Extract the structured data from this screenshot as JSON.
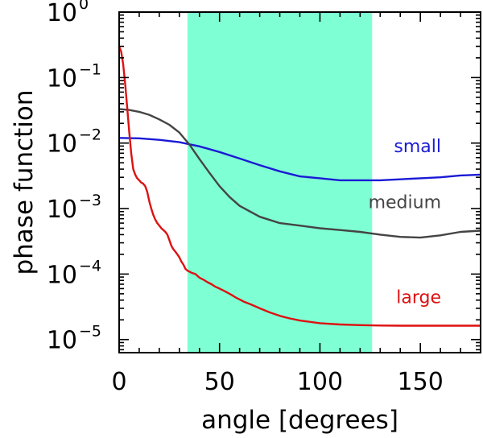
{
  "chart_data": {
    "type": "line",
    "title": "",
    "xlabel": "angle [degrees]",
    "ylabel": "phase function",
    "xlim": [
      0,
      180
    ],
    "ylim_log10": [
      -5.2,
      0
    ],
    "yscale": "log",
    "x_ticks": [
      {
        "value": 0,
        "label": "0"
      },
      {
        "value": 50,
        "label": "50"
      },
      {
        "value": 100,
        "label": "100"
      },
      {
        "value": 150,
        "label": "150"
      }
    ],
    "y_ticks": [
      {
        "exp": 0,
        "base": "10",
        "sup": "0"
      },
      {
        "exp": -1,
        "base": "10",
        "sup": "−1"
      },
      {
        "exp": -2,
        "base": "10",
        "sup": "−2"
      },
      {
        "exp": -3,
        "base": "10",
        "sup": "−3"
      },
      {
        "exp": -4,
        "base": "10",
        "sup": "−4"
      },
      {
        "exp": -5,
        "base": "10",
        "sup": "−5"
      }
    ],
    "shaded_region": {
      "x_start": 34,
      "x_end": 126,
      "color": "#7fffd4"
    },
    "series": [
      {
        "name": "small",
        "color": "#1a1ad6",
        "points": [
          [
            0,
            0.012
          ],
          [
            10,
            0.0118
          ],
          [
            20,
            0.0112
          ],
          [
            30,
            0.0103
          ],
          [
            40,
            0.0089
          ],
          [
            50,
            0.0073
          ],
          [
            60,
            0.0058
          ],
          [
            70,
            0.0046
          ],
          [
            80,
            0.0037
          ],
          [
            90,
            0.0031
          ],
          [
            100,
            0.0029
          ],
          [
            110,
            0.0027
          ],
          [
            120,
            0.0027
          ],
          [
            130,
            0.0027
          ],
          [
            140,
            0.0028
          ],
          [
            150,
            0.0029
          ],
          [
            160,
            0.003
          ],
          [
            170,
            0.0032
          ],
          [
            180,
            0.0033
          ]
        ]
      },
      {
        "name": "medium",
        "color": "#444444",
        "points": [
          [
            0,
            0.033
          ],
          [
            5,
            0.032
          ],
          [
            10,
            0.03
          ],
          [
            15,
            0.027
          ],
          [
            20,
            0.023
          ],
          [
            25,
            0.019
          ],
          [
            30,
            0.0145
          ],
          [
            35,
            0.0095
          ],
          [
            40,
            0.0057
          ],
          [
            45,
            0.0035
          ],
          [
            50,
            0.0022
          ],
          [
            55,
            0.0015
          ],
          [
            60,
            0.0011
          ],
          [
            70,
            0.00075
          ],
          [
            80,
            0.0006
          ],
          [
            90,
            0.00055
          ],
          [
            100,
            0.0005
          ],
          [
            110,
            0.00047
          ],
          [
            120,
            0.00044
          ],
          [
            130,
            0.0004
          ],
          [
            140,
            0.00037
          ],
          [
            150,
            0.00036
          ],
          [
            160,
            0.00039
          ],
          [
            170,
            0.00044
          ],
          [
            180,
            0.00046
          ]
        ]
      },
      {
        "name": "large",
        "color": "#dd1111",
        "points": [
          [
            0,
            0.3
          ],
          [
            1,
            0.25
          ],
          [
            2,
            0.16
          ],
          [
            3,
            0.08
          ],
          [
            4,
            0.035
          ],
          [
            5,
            0.015
          ],
          [
            6,
            0.007
          ],
          [
            7,
            0.004
          ],
          [
            8,
            0.0033
          ],
          [
            9,
            0.0029
          ],
          [
            10,
            0.0027
          ],
          [
            11,
            0.0025
          ],
          [
            12,
            0.0024
          ],
          [
            13,
            0.0022
          ],
          [
            14,
            0.0018
          ],
          [
            15,
            0.0013
          ],
          [
            16,
            0.001
          ],
          [
            17,
            0.0008
          ],
          [
            18,
            0.00068
          ],
          [
            19,
            0.0006
          ],
          [
            20,
            0.00055
          ],
          [
            21,
            0.0005
          ],
          [
            22,
            0.00047
          ],
          [
            23,
            0.00044
          ],
          [
            24,
            0.0004
          ],
          [
            25,
            0.00033
          ],
          [
            26,
            0.00027
          ],
          [
            27,
            0.00024
          ],
          [
            28,
            0.00022
          ],
          [
            29,
            0.0002
          ],
          [
            30,
            0.00018
          ],
          [
            31,
            0.000155
          ],
          [
            32,
            0.00014
          ],
          [
            33,
            0.00012
          ],
          [
            34,
            0.000113
          ],
          [
            36,
            0.000105
          ],
          [
            38,
            0.0001
          ],
          [
            40,
            8.8e-05
          ],
          [
            42,
            8.2e-05
          ],
          [
            44,
            7.5e-05
          ],
          [
            46,
            7e-05
          ],
          [
            48,
            6.4e-05
          ],
          [
            50,
            6e-05
          ],
          [
            52,
            5.6e-05
          ],
          [
            54,
            5.2e-05
          ],
          [
            56,
            4.8e-05
          ],
          [
            58,
            4.4e-05
          ],
          [
            60,
            4.1e-05
          ],
          [
            62,
            3.8e-05
          ],
          [
            64,
            3.6e-05
          ],
          [
            66,
            3.4e-05
          ],
          [
            70,
            3e-05
          ],
          [
            75,
            2.6e-05
          ],
          [
            80,
            2.3e-05
          ],
          [
            85,
            2.1e-05
          ],
          [
            90,
            1.95e-05
          ],
          [
            100,
            1.78e-05
          ],
          [
            110,
            1.7e-05
          ],
          [
            120,
            1.66e-05
          ],
          [
            130,
            1.64e-05
          ],
          [
            140,
            1.63e-05
          ],
          [
            150,
            1.63e-05
          ],
          [
            160,
            1.63e-05
          ],
          [
            170,
            1.63e-05
          ],
          [
            180,
            1.63e-05
          ]
        ]
      }
    ]
  }
}
